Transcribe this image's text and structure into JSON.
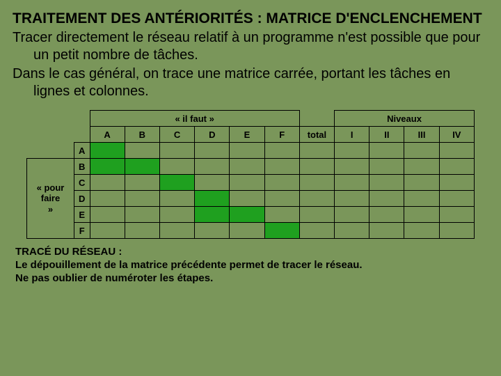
{
  "title": "TRAITEMENT DES ANTÉRIORITÉS : MATRICE D'ENCLENCHEMENT",
  "para1": "Tracer directement le réseau relatif à un programme n'est possible que pour un petit nombre de tâches.",
  "para2": "Dans le cas général, on trace une matrice carrée, portant les tâches en lignes et colonnes.",
  "table": {
    "top_group_left": "« il faut »",
    "top_group_right": "Niveaux",
    "row_group_label_1": "« pour",
    "row_group_label_2": "faire",
    "row_group_label_3": "»",
    "cols": [
      "A",
      "B",
      "C",
      "D",
      "E",
      "F"
    ],
    "extra_cols": [
      "total",
      "I",
      "II",
      "III",
      "IV"
    ],
    "rows": [
      "A",
      "B",
      "C",
      "D",
      "E",
      "F"
    ],
    "green_cells": [
      [
        0,
        0
      ],
      [
        1,
        0
      ],
      [
        1,
        1
      ],
      [
        2,
        2
      ],
      [
        3,
        3
      ],
      [
        4,
        3
      ],
      [
        4,
        4
      ],
      [
        5,
        5
      ]
    ]
  },
  "footer_title": "TRACÉ DU RÉSEAU :",
  "footer_l1": "Le dépouillement de la matrice précédente permet de tracer le réseau.",
  "footer_l2": "Ne pas oublier de numéroter les étapes.",
  "colors": {
    "background": "#7a965a",
    "green": "#1fa01f"
  }
}
